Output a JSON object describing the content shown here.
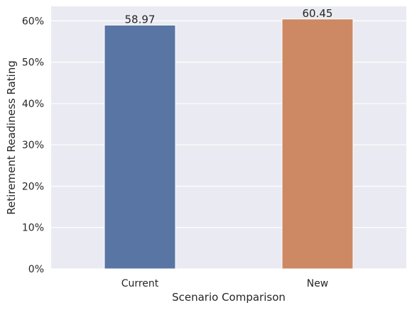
{
  "chart_data": {
    "type": "bar",
    "categories": [
      "Current",
      "New"
    ],
    "values": [
      58.97,
      60.45
    ],
    "data_labels": [
      "58.97",
      "60.45"
    ],
    "xlabel": "Scenario Comparison",
    "ylabel": "Retirement Readiness Rating",
    "ylim": [
      0,
      63.5
    ],
    "yticks": [
      0,
      10,
      20,
      30,
      40,
      50,
      60
    ],
    "ytick_labels": [
      "0%",
      "10%",
      "20%",
      "30%",
      "40%",
      "50%",
      "60%"
    ],
    "grid": true,
    "colors": [
      "#5875a4",
      "#cc8963"
    ],
    "background": "#eaeaf2"
  }
}
